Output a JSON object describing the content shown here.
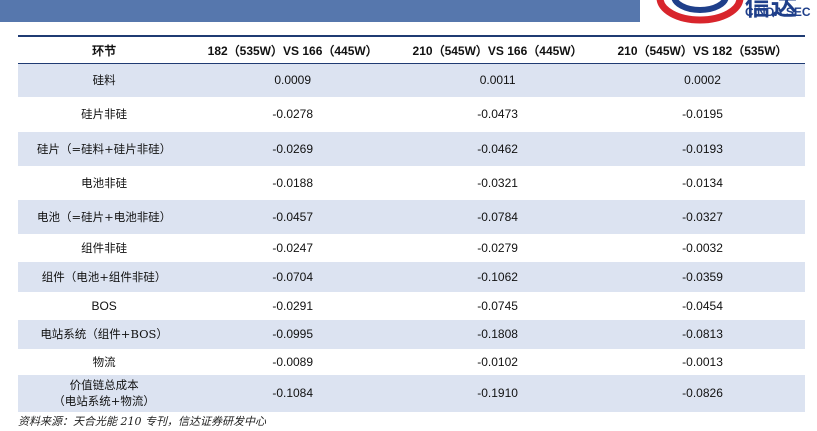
{
  "header": {
    "logo_text": "CINDA SEC",
    "logo_cn": "信达"
  },
  "table": {
    "columns": [
      "环节",
      "182（535W）VS 166（445W）",
      "210（545W）VS 166（445W）",
      "210（545W）VS 182（535W）"
    ],
    "rows": [
      [
        "硅料",
        "0.0009",
        "0.0011",
        "0.0002"
      ],
      [
        "硅片非硅",
        "-0.0278",
        "-0.0473",
        "-0.0195"
      ],
      [
        "硅片（=硅料+硅片非硅）",
        "-0.0269",
        "-0.0462",
        "-0.0193"
      ],
      [
        "电池非硅",
        "-0.0188",
        "-0.0321",
        "-0.0134"
      ],
      [
        "电池（=硅片+电池非硅）",
        "-0.0457",
        "-0.0784",
        "-0.0327"
      ],
      [
        "组件非硅",
        "-0.0247",
        "-0.0279",
        "-0.0032"
      ],
      [
        "组件（电池+组件非硅）",
        "-0.0704",
        "-0.1062",
        "-0.0359"
      ],
      [
        "BOS",
        "-0.0291",
        "-0.0745",
        "-0.0454"
      ],
      [
        "电站系统（组件+BOS）",
        "-0.0995",
        "-0.1808",
        "-0.0813"
      ],
      [
        "物流",
        "-0.0089",
        "-0.0102",
        "-0.0013"
      ],
      [
        [
          "价值链总成本",
          "（电站系统+物流）"
        ],
        "-0.1084",
        "-0.1910",
        "-0.0826"
      ]
    ]
  },
  "footer": {
    "source": "资料来源：天合光能 210 专刊，信达证券研发中心"
  }
}
